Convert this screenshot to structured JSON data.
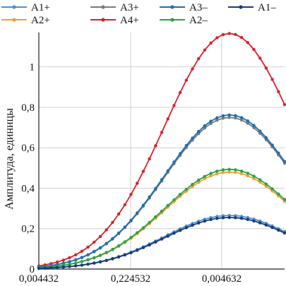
{
  "chart_data": {
    "type": "line",
    "ylabel": "Амплитуда, единицы",
    "xlabel": "",
    "ylim": [
      0,
      1.17
    ],
    "x_ticks": [
      "0,004432",
      "0,224532",
      "0,004632"
    ],
    "y_ticks": [
      "0",
      "0,2",
      "0,4",
      "0,6",
      "0,8",
      "1"
    ],
    "y_tick_values": [
      0,
      0.2,
      0.4,
      0.6,
      0.8,
      1.0
    ],
    "grid": true,
    "legend_position": "top",
    "series": [
      {
        "name": "A1+",
        "color": "#4a90c8",
        "peak": 0.265
      },
      {
        "name": "A2+",
        "color": "#f0a030",
        "peak": 0.48
      },
      {
        "name": "A3+",
        "color": "#7a7a7a",
        "peak": 0.75
      },
      {
        "name": "A4+",
        "color": "#d9202a",
        "peak": 1.165
      },
      {
        "name": "A3–",
        "color": "#1f6fae",
        "peak": 0.762
      },
      {
        "name": "A2–",
        "color": "#2aa24a",
        "peak": 0.493
      },
      {
        "name": "A1–",
        "color": "#1a3a7a",
        "peak": 0.255
      }
    ]
  }
}
